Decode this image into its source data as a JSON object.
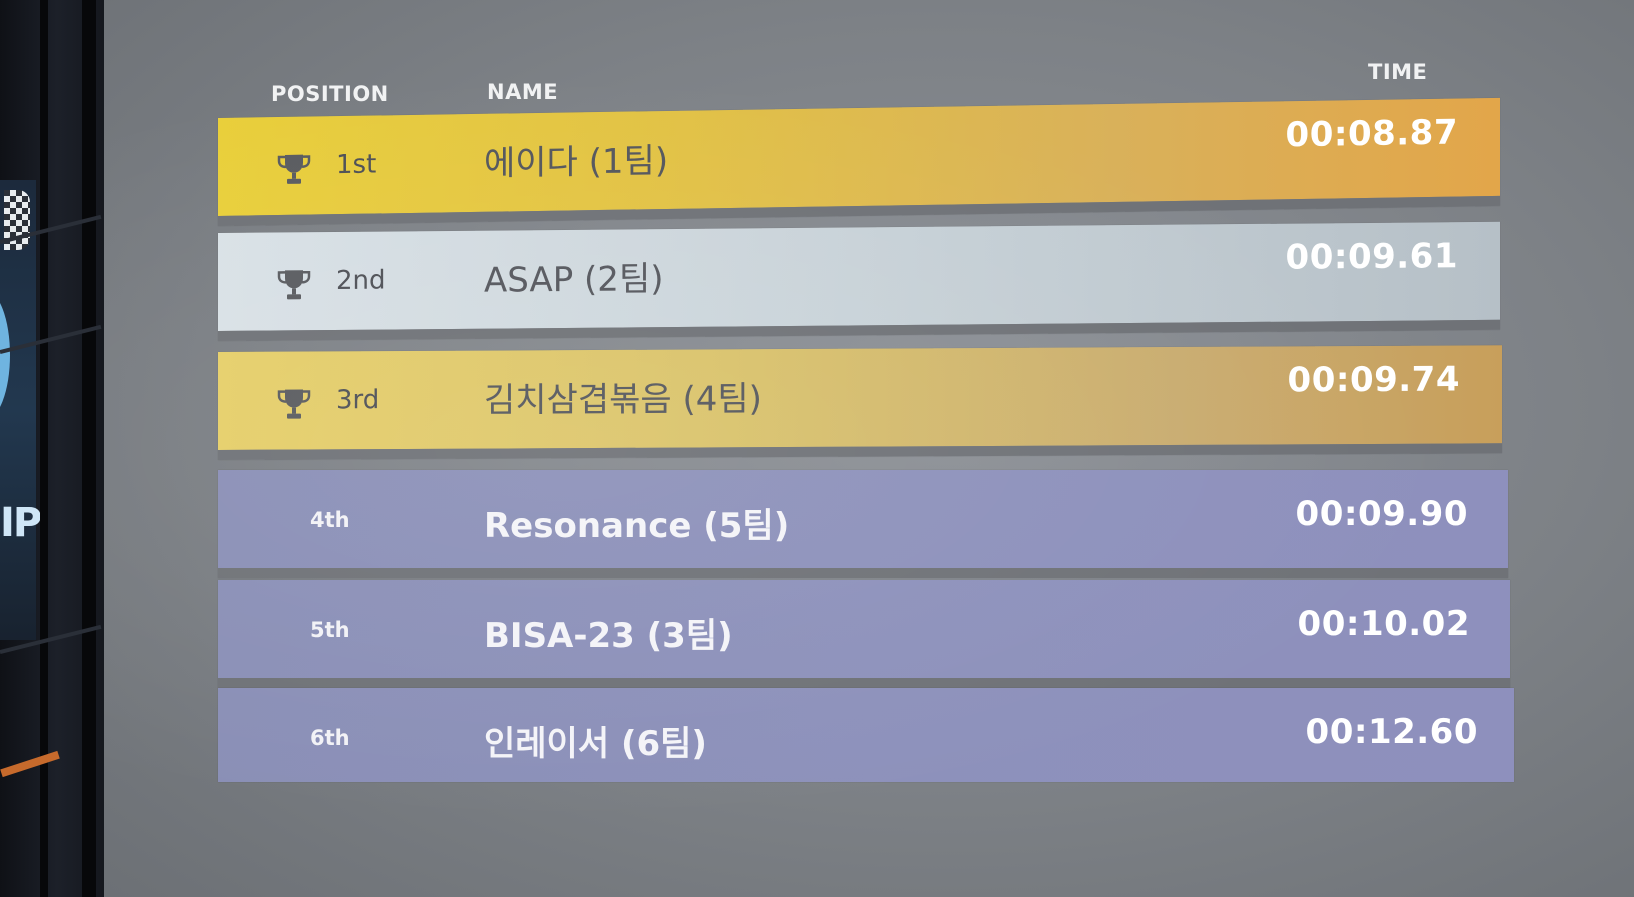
{
  "headers": {
    "position": "POSITION",
    "name": "NAME",
    "time": "TIME"
  },
  "leaderboard": [
    {
      "position": "1st",
      "name": "에이다 (1팀)",
      "time": "00:08.87",
      "trophy": true
    },
    {
      "position": "2nd",
      "name": "ASAP (2팀)",
      "time": "00:09.61",
      "trophy": true
    },
    {
      "position": "3rd",
      "name": "김치삼겹볶음 (4팀)",
      "time": "00:09.74",
      "trophy": true
    },
    {
      "position": "4th",
      "name": "Resonance (5팀)",
      "time": "00:09.90",
      "trophy": false
    },
    {
      "position": "5th",
      "name": "BISA-23 (3팀)",
      "time": "00:10.02",
      "trophy": false
    },
    {
      "position": "6th",
      "name": "인레이서 (6팀)",
      "time": "00:12.60",
      "trophy": false
    }
  ],
  "side_sign": {
    "text": "IP"
  },
  "icons": {
    "trophy": "trophy-icon",
    "flag": "checkered-flag-icon"
  },
  "colors": {
    "gold": "#e9cf3a",
    "silver": "#d9e1e6",
    "bronze": "#e6cf69",
    "purple": "#8a8fb6",
    "screen": "#8d9197"
  }
}
